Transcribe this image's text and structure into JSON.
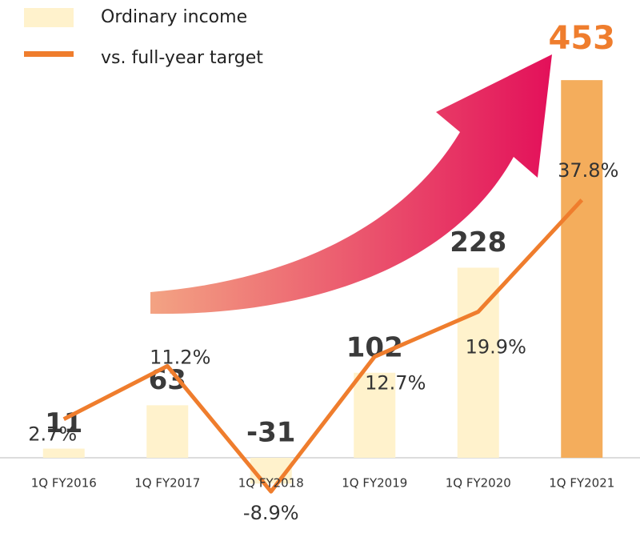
{
  "chart_data": {
    "type": "bar",
    "categories": [
      "1Q FY2016",
      "1Q FY2017",
      "1Q FY2018",
      "1Q FY2019",
      "1Q FY2020",
      "1Q FY2021"
    ],
    "series": [
      {
        "name": "Ordinary income",
        "type": "bar",
        "color": "#fff2cc",
        "colors": [
          "#fff2cc",
          "#fff2cc",
          "#fff2cc",
          "#fff2cc",
          "#fff2cc",
          "#f4ad5c"
        ],
        "label_colors": [
          "#3a3a3a",
          "#3a3a3a",
          "#3a3a3a",
          "#3a3a3a",
          "#3a3a3a",
          "#ef7d2d"
        ],
        "values": [
          11,
          63,
          -31,
          102,
          228,
          453
        ]
      },
      {
        "name": "vs. full-year target",
        "type": "line",
        "axis": "y2",
        "color": "#ef7d2d",
        "values": [
          2.7,
          11.2,
          -8.9,
          12.7,
          19.9,
          37.8
        ],
        "value_labels": [
          "2.7%",
          "11.2%",
          "-8.9%",
          "12.7%",
          "19.9%",
          "37.8%"
        ]
      }
    ],
    "ylim": [
      -60,
      480
    ],
    "y2lim": [
      -11.5,
      60.6
    ]
  }
}
